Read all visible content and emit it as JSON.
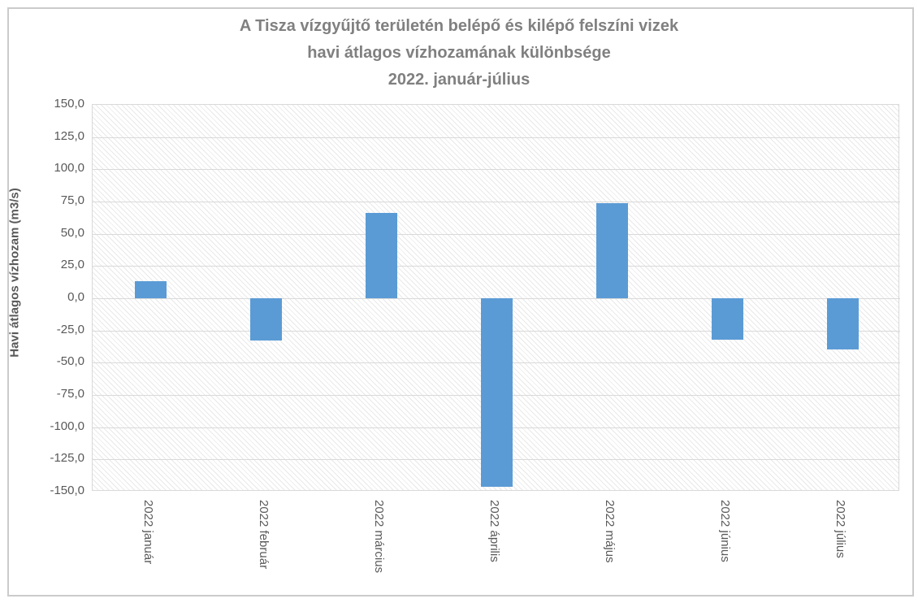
{
  "page": {
    "background": "#FFFFFF",
    "border_color": "#CBCBCB"
  },
  "chart_data": {
    "type": "bar",
    "title": "A Tisza vízgyűjtő területén belépő és kilépő felszíni vizek havi átlagos vízhozamának különbsége 2022. január-július",
    "title_lines": [
      "A Tisza vízgyűjtő területén belépő és kilépő felszíni vizek",
      "havi átlagos vízhozamának különbsége",
      "2022. január-július"
    ],
    "ylabel": "Havi átlagos vízhozam (m3/s)",
    "xlabel": "",
    "categories": [
      "2022 január",
      "2022 február",
      "2022 március",
      "2022 április",
      "2022 május",
      "2022 június",
      "2022 július"
    ],
    "values": [
      13,
      -33,
      66,
      -146,
      74,
      -32,
      -40
    ],
    "ylim": [
      -150,
      150
    ],
    "ytick_step": 25,
    "ytick_labels": [
      "150,0",
      "125,0",
      "100,0",
      "75,0",
      "50,0",
      "25,0",
      "0,0",
      "-25,0",
      "-50,0",
      "-75,0",
      "-100,0",
      "-125,0",
      "-150,0"
    ],
    "grid": true,
    "legend": "none",
    "plot_background": "light-diagonal-hatch",
    "colors": {
      "bar": "#5B9BD5",
      "gridline": "#D9D9D9",
      "title": "#808080",
      "axis_text": "#595959",
      "hatch_line": "#E9E9E9",
      "background": "#FFFFFF"
    }
  }
}
